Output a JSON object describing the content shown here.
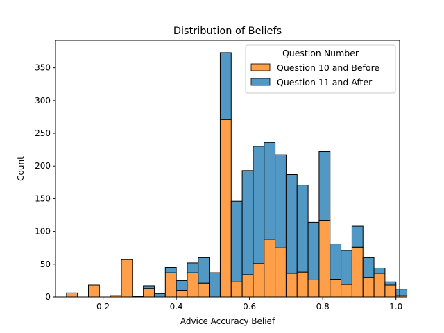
{
  "chart_data": {
    "type": "bar",
    "subtype": "stacked-histogram",
    "title": "Distribution of Beliefs",
    "xlabel": "Advice Accuracy Belief",
    "ylabel": "Count",
    "xlim": [
      0.07,
      1.01
    ],
    "ylim": [
      0,
      392
    ],
    "xticks": [
      0.2,
      0.4,
      0.6,
      0.8,
      1.0
    ],
    "xtick_labels": [
      "0.2",
      "0.4",
      "0.6",
      "0.8",
      "1.0"
    ],
    "yticks": [
      0,
      50,
      100,
      150,
      200,
      250,
      300,
      350
    ],
    "ytick_labels": [
      "0",
      "50",
      "100",
      "150",
      "200",
      "250",
      "300",
      "350"
    ],
    "bin_width": 0.03,
    "bin_edges_start": 0.1,
    "bins": [
      {
        "x0": 0.1,
        "before": 6,
        "after": 0
      },
      {
        "x0": 0.13,
        "before": 0,
        "after": 0
      },
      {
        "x0": 0.16,
        "before": 18,
        "after": 0
      },
      {
        "x0": 0.19,
        "before": 0,
        "after": 0
      },
      {
        "x0": 0.22,
        "before": 2,
        "after": 0
      },
      {
        "x0": 0.25,
        "before": 57,
        "after": 0
      },
      {
        "x0": 0.28,
        "before": 1,
        "after": 0
      },
      {
        "x0": 0.31,
        "before": 13,
        "after": 4
      },
      {
        "x0": 0.34,
        "before": 0,
        "after": 5
      },
      {
        "x0": 0.37,
        "before": 37,
        "after": 8
      },
      {
        "x0": 0.4,
        "before": 10,
        "after": 15
      },
      {
        "x0": 0.43,
        "before": 37,
        "after": 15
      },
      {
        "x0": 0.46,
        "before": 21,
        "after": 39
      },
      {
        "x0": 0.49,
        "before": 0,
        "after": 37
      },
      {
        "x0": 0.52,
        "before": 271,
        "after": 102
      },
      {
        "x0": 0.55,
        "before": 23,
        "after": 123
      },
      {
        "x0": 0.58,
        "before": 34,
        "after": 159
      },
      {
        "x0": 0.61,
        "before": 51,
        "after": 179
      },
      {
        "x0": 0.64,
        "before": 88,
        "after": 148
      },
      {
        "x0": 0.67,
        "before": 75,
        "after": 142
      },
      {
        "x0": 0.7,
        "before": 36,
        "after": 151
      },
      {
        "x0": 0.73,
        "before": 38,
        "after": 133
      },
      {
        "x0": 0.76,
        "before": 26,
        "after": 88
      },
      {
        "x0": 0.79,
        "before": 117,
        "after": 105
      },
      {
        "x0": 0.82,
        "before": 27,
        "after": 54
      },
      {
        "x0": 0.85,
        "before": 19,
        "after": 52
      },
      {
        "x0": 0.88,
        "before": 76,
        "after": 32
      },
      {
        "x0": 0.91,
        "before": 30,
        "after": 30
      },
      {
        "x0": 0.94,
        "before": 36,
        "after": 8
      },
      {
        "x0": 0.97,
        "before": 18,
        "after": 5
      },
      {
        "x0": 1.0,
        "before": 2,
        "after": 10
      }
    ],
    "series": [
      {
        "name": "Question 10 and Before",
        "key": "before",
        "color": "#ff9f4a"
      },
      {
        "name": "Question 11 and After",
        "key": "after",
        "color": "#5298c5"
      }
    ],
    "legend": {
      "title": "Question Number",
      "placement": "top-right"
    },
    "grid": false
  }
}
